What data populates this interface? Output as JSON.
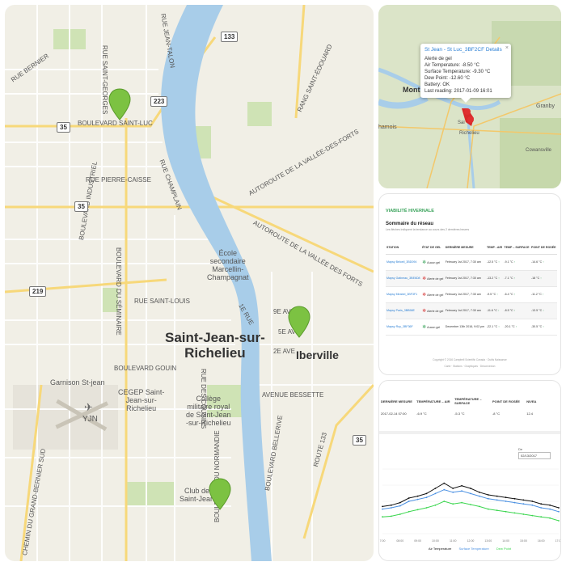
{
  "large_map": {
    "city_main": [
      "Saint-Jean-sur-",
      "Richelieu"
    ],
    "city_east": "Iberville",
    "roads": {
      "rue_saint_george": "RUE SAINT-GEORGES",
      "rue_jean_talon": "RUE JEAN-TALON",
      "rue_bernier": "RUE BERNIER",
      "boulevard_saint_luc": "BOULEVARD SAINT-LUC",
      "rue_pierre_caisse": "RUE PIERRE-CAISSE",
      "boulevard_industriel": "BOULEVARD INDUSTRIEL",
      "boulevard_du_seminaire": "BOULEVARD DU SÉMINAIRE",
      "rue_saint_louis": "RUE SAINT-LOUIS",
      "boulevard_gouin": "BOULEVARD GOUIN",
      "chemin_grand_bernier": "CHEMIN DU GRAND-BERNIER SUD",
      "autoroute_vallee_forts": "AUTOROUTE DE LA VALLÉE-DES-FORTS",
      "autoroute_vallee_forts_2": "AUTOROUTE DE LA VALLÉE DES FORTS",
      "rang_saint_edouard": "RANG SAINT-ÉDOUARD",
      "route_133": "ROUTE 133",
      "rue_champlain": "RUE CHAMPLAIN",
      "avenue_bessette": "AVENUE BESSETTE",
      "1e_rue": "1E RUE",
      "9e_ave": "9E AVE",
      "5e_ave": "5E AV",
      "2e_ave": "2E AVE",
      "boulevard_du_normandie": "BOULEVARD DU NORMANDIE",
      "boulevard_bellerive": "BOULEVARD BELLERIVE",
      "rue_cousins": "RUE DES COUSINS"
    },
    "pois": {
      "ecole": [
        "École",
        "secondaire",
        "Marcellin-",
        "Champagnat"
      ],
      "garnison": "Garnison St-jean",
      "cegep": [
        "CEGEP Saint-",
        "Jean-sur-",
        "Richelieu"
      ],
      "college": [
        "Collège",
        "militaire royal",
        "de Saint-Jean",
        "-sur-Richelieu"
      ],
      "club": [
        "Club de",
        "Saint-Jean"
      ],
      "airport": "YJN"
    },
    "shields": {
      "r133": "133",
      "r223": "223",
      "r35a": "35",
      "r35b": "35",
      "r219": "219",
      "r35c": "35"
    }
  },
  "small_map": {
    "labels": {
      "montreal": "Mont",
      "granby": "Granby",
      "chambly": "hamois",
      "saint_jean": "Sai",
      "richelieu": "Richelieu",
      "cowansville": "Cowansville"
    },
    "popup": {
      "title": "St Jean - St Luc_3BF2CF Details",
      "close": "×",
      "lines": [
        "Alerte de gel",
        "Air Temperature: -8.50 °C",
        "Surface Temperature: -9.30 °C",
        "Dew Point: -12.60 °C",
        "Battery: OK",
        "Last reading: 2017-01-09 16:01"
      ]
    }
  },
  "dashboard": {
    "title": "VIABILITÉ HIVERNALE",
    "subtitle": "Sommaire du réseau",
    "note": "Les flèches indiquent la tendance au cours des 2 dernières heures",
    "headers": [
      "STATION",
      "ÉTAT DE GEL",
      "DERNIÈRE MESURE",
      "TEMP - AIR",
      "TEMP – SURFACE",
      "POINT DE ROSÉE"
    ],
    "rows": [
      {
        "station": "Mapsy Beloeil_3BD094",
        "status": "Aucun gel",
        "time": "February 1st 2017, 7:30 am",
        "air": "-12.5 °C",
        "surface": "-9.1 °C",
        "dew": "-14.6 °C",
        "status_color": "#3aa35b"
      },
      {
        "station": "Mapsy Gatineau_3BE6D8",
        "status": "Alerte de gel",
        "time": "February 1st 2017, 7:30 am",
        "air": "-13.2 °C",
        "surface": "-7.1 °C",
        "dew": "-18 °C",
        "status_color": "#d63a3a"
      },
      {
        "station": "Mapsy Mirabel_3BF3F1",
        "status": "Alerte de gel",
        "time": "February 1st 2017, 7:30 am",
        "air": "-9.5 °C",
        "surface": "-6.4 °C",
        "dew": "-11.2 °C",
        "status_color": "#d63a3a"
      },
      {
        "station": "Mapsy Paris_3BB58E",
        "status": "Alerte de gel",
        "time": "February 1st 2017, 7:30 am",
        "air": "-11.6 °C",
        "surface": "-8.5 °C",
        "dew": "-13.5 °C",
        "status_color": "#d63a3a"
      },
      {
        "station": "Mapsy Roy_3BF36F",
        "status": "Aucun gel",
        "time": "December 13th 2016, 9:02 pm",
        "air": "-22.1 °C",
        "surface": "-20.1 °C",
        "dew": "-30.5 °C",
        "status_color": "#3aa35b"
      }
    ],
    "footer": "Copyright © 2016 Campbell Scientific Canada · Outils Naissance",
    "footer_links": "Carte · Stations · Graphiques · Déconnexion"
  },
  "detail": {
    "headers": [
      "DERNIÈRE MESURE",
      "TEMPÉRATURE – AIR",
      "TEMPÉRATURE – SURFACE",
      "POINT DE ROSÉE",
      "NIVEA"
    ],
    "row": [
      "2017-02-14 07:00",
      "-6.9 °C",
      "-5.3 °C",
      "-8 °C",
      "12.4"
    ],
    "de_label": "De",
    "de_value": "02/13/2017",
    "legend": [
      "Air Temperature",
      "Surface Temperature",
      "Dew Point"
    ],
    "x_ticks": [
      "7:00",
      "08:00",
      "09:00",
      "10:00",
      "11:00",
      "12:00",
      "13:00",
      "14:00",
      "15:00",
      "16:00",
      "17:00"
    ]
  },
  "chart_data": {
    "type": "line",
    "x": [
      0,
      1,
      2,
      3,
      4,
      5,
      6,
      7,
      8,
      9,
      10,
      11,
      12,
      13,
      14,
      15,
      16,
      17,
      18,
      19,
      20
    ],
    "series": [
      {
        "name": "Air Temperature",
        "values": [
          58,
          56,
          52,
          45,
          42,
          38,
          30,
          22,
          30,
          26,
          30,
          36,
          40,
          42,
          44,
          46,
          48,
          50,
          54,
          56,
          60
        ]
      },
      {
        "name": "Surface Temperature",
        "values": [
          62,
          60,
          57,
          50,
          47,
          44,
          38,
          32,
          36,
          34,
          38,
          42,
          46,
          48,
          50,
          52,
          54,
          56,
          60,
          62,
          66
        ]
      },
      {
        "name": "Dew Point",
        "values": [
          74,
          73,
          70,
          66,
          63,
          60,
          56,
          50,
          54,
          52,
          55,
          58,
          62,
          64,
          66,
          68,
          70,
          72,
          74,
          76,
          80
        ]
      }
    ],
    "colors": [
      "#111111",
      "#4a90e2",
      "#3bd64f"
    ]
  }
}
